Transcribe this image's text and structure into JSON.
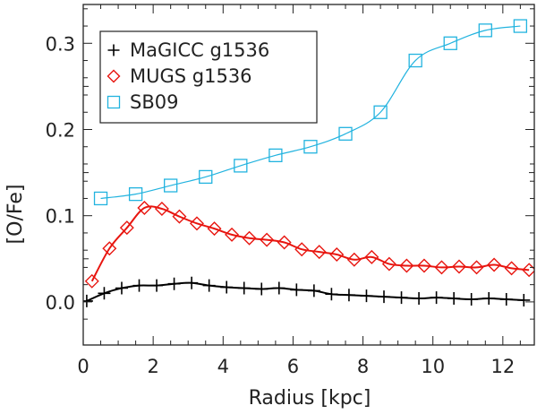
{
  "chart_data": {
    "type": "line",
    "xlabel": "Radius [kpc]",
    "ylabel": "[O/Fe]",
    "xlim": [
      0,
      12.9
    ],
    "ylim": [
      -0.05,
      0.345
    ],
    "xticks": [
      "0",
      "2",
      "4",
      "6",
      "8",
      "10",
      "12"
    ],
    "xtick_values": [
      0,
      2,
      4,
      6,
      8,
      10,
      12
    ],
    "yticks": [
      "0.0",
      "0.1",
      "0.2",
      "0.3"
    ],
    "ytick_values": [
      0.0,
      0.1,
      0.2,
      0.3
    ],
    "grid": false,
    "legend_position": "top-left",
    "series": [
      {
        "name": "MaGICC g1536",
        "marker": "plus",
        "color": "#000000",
        "x": [
          0.1,
          0.6,
          1.1,
          1.6,
          2.1,
          2.6,
          3.1,
          3.6,
          4.1,
          4.6,
          5.1,
          5.6,
          6.1,
          6.6,
          7.1,
          7.6,
          8.1,
          8.6,
          9.1,
          9.6,
          10.1,
          10.6,
          11.1,
          11.6,
          12.1,
          12.6
        ],
        "y": [
          0.001,
          0.01,
          0.016,
          0.019,
          0.019,
          0.021,
          0.022,
          0.019,
          0.017,
          0.016,
          0.015,
          0.016,
          0.014,
          0.013,
          0.009,
          0.008,
          0.007,
          0.006,
          0.005,
          0.004,
          0.005,
          0.004,
          0.003,
          0.004,
          0.003,
          0.002
        ]
      },
      {
        "name": "MUGS g1536",
        "marker": "diamond",
        "color": "#e8150f",
        "x": [
          0.25,
          0.75,
          1.25,
          1.75,
          2.25,
          2.75,
          3.25,
          3.75,
          4.25,
          4.75,
          5.25,
          5.75,
          6.25,
          6.75,
          7.25,
          7.75,
          8.25,
          8.75,
          9.25,
          9.75,
          10.25,
          10.75,
          11.25,
          11.75,
          12.25,
          12.75
        ],
        "y": [
          0.024,
          0.062,
          0.086,
          0.109,
          0.108,
          0.099,
          0.091,
          0.085,
          0.078,
          0.074,
          0.072,
          0.069,
          0.061,
          0.058,
          0.055,
          0.049,
          0.052,
          0.044,
          0.042,
          0.042,
          0.04,
          0.041,
          0.04,
          0.043,
          0.039,
          0.037
        ]
      },
      {
        "name": "SB09",
        "marker": "square",
        "color": "#22b3df",
        "x": [
          0.5,
          1.5,
          2.5,
          3.5,
          4.5,
          5.5,
          6.5,
          7.5,
          8.5,
          9.5,
          10.5,
          11.5,
          12.5
        ],
        "y": [
          0.12,
          0.125,
          0.135,
          0.145,
          0.158,
          0.17,
          0.18,
          0.195,
          0.22,
          0.28,
          0.3,
          0.315,
          0.32
        ]
      }
    ]
  }
}
